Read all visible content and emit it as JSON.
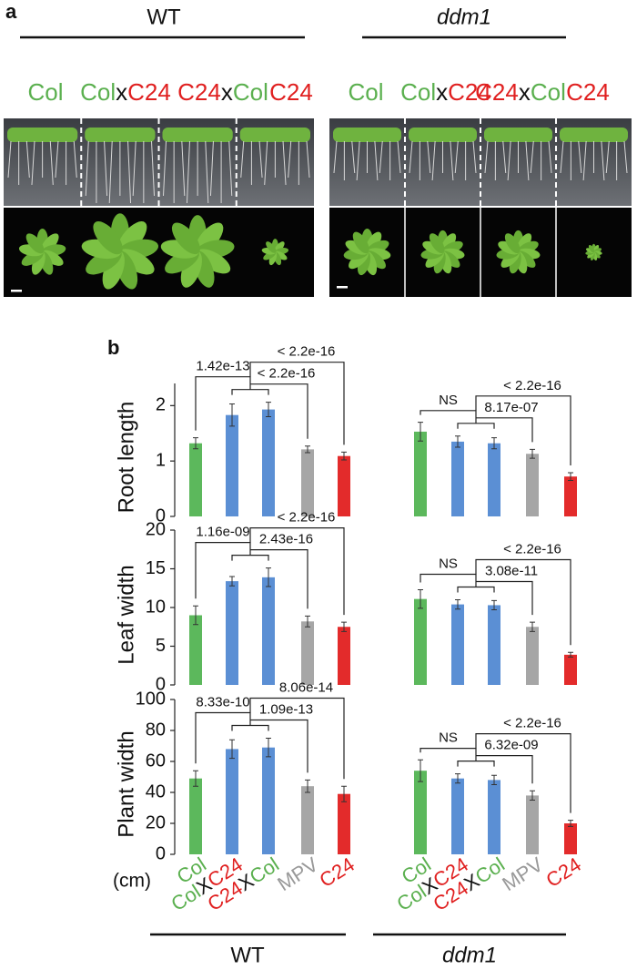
{
  "panel_a": {
    "label": "a",
    "groups": [
      {
        "name": "WT",
        "samples": [
          {
            "parts": [
              {
                "text": "Col",
                "color": "#5bb04f"
              }
            ]
          },
          {
            "parts": [
              {
                "text": "Col",
                "color": "#5bb04f"
              },
              {
                "text": "x",
                "color": "#111111"
              },
              {
                "text": "C24",
                "color": "#e02020"
              }
            ]
          },
          {
            "parts": [
              {
                "text": "C24",
                "color": "#e02020"
              },
              {
                "text": "x",
                "color": "#111111"
              },
              {
                "text": "Col",
                "color": "#5bb04f"
              }
            ]
          },
          {
            "parts": [
              {
                "text": "C24",
                "color": "#e02020"
              }
            ]
          }
        ]
      },
      {
        "name": "ddm1",
        "samples": [
          {
            "parts": [
              {
                "text": "Col",
                "color": "#5bb04f"
              }
            ]
          },
          {
            "parts": [
              {
                "text": "Col",
                "color": "#5bb04f"
              },
              {
                "text": "x",
                "color": "#111111"
              },
              {
                "text": "C24",
                "color": "#e02020"
              }
            ]
          },
          {
            "parts": [
              {
                "text": "C24",
                "color": "#e02020"
              },
              {
                "text": "x",
                "color": "#111111"
              },
              {
                "text": "Col",
                "color": "#5bb04f"
              }
            ]
          },
          {
            "parts": [
              {
                "text": "C24",
                "color": "#e02020"
              }
            ]
          }
        ]
      }
    ]
  },
  "panel_b": {
    "label": "b",
    "unit": "(cm)",
    "groups": [
      "WT",
      "ddm1"
    ]
  },
  "chart_data": [
    {
      "type": "bar",
      "ylabel": "Root length",
      "values": [
        1.32,
        1.83,
        1.93,
        1.21,
        1.09
      ],
      "errors": [
        0.1,
        0.2,
        0.13,
        0.06,
        0.07
      ],
      "colors": [
        "#5cb85c",
        "#5b8fd4",
        "#5b8fd4",
        "#a6a6a6",
        "#e32b2b"
      ],
      "ylim": [
        0,
        2.4
      ],
      "yticks": [
        0,
        1,
        2
      ],
      "annotations": [
        "1.42e-13",
        "< 2.2e-16",
        "< 2.2e-16"
      ]
    },
    {
      "type": "bar",
      "values": [
        1.53,
        1.35,
        1.32,
        1.13,
        0.72
      ],
      "errors": [
        0.17,
        0.1,
        0.1,
        0.08,
        0.07
      ],
      "colors": [
        "#5cb85c",
        "#5b8fd4",
        "#5b8fd4",
        "#a6a6a6",
        "#e32b2b"
      ],
      "ylim": [
        0,
        2.4
      ],
      "annotations": [
        "NS",
        "8.17e-07",
        "< 2.2e-16"
      ]
    },
    {
      "type": "bar",
      "ylabel": "Leaf width",
      "values": [
        9,
        13.4,
        13.9,
        8.2,
        7.5
      ],
      "errors": [
        1.2,
        0.6,
        1.2,
        0.7,
        0.6
      ],
      "colors": [
        "#5cb85c",
        "#5b8fd4",
        "#5b8fd4",
        "#a6a6a6",
        "#e32b2b"
      ],
      "ylim": [
        0,
        20
      ],
      "yticks": [
        0,
        5,
        10,
        15,
        20
      ],
      "annotations": [
        "1.16e-09",
        "2.43e-16",
        "< 2.2e-16"
      ]
    },
    {
      "type": "bar",
      "values": [
        11.1,
        10.4,
        10.3,
        7.5,
        3.9
      ],
      "errors": [
        1.2,
        0.6,
        0.6,
        0.6,
        0.3
      ],
      "colors": [
        "#5cb85c",
        "#5b8fd4",
        "#5b8fd4",
        "#a6a6a6",
        "#e32b2b"
      ],
      "ylim": [
        0,
        20
      ],
      "annotations": [
        "NS",
        "3.08e-11",
        "< 2.2e-16"
      ]
    },
    {
      "type": "bar",
      "ylabel": "Plant width",
      "values": [
        49,
        68,
        69,
        44,
        39
      ],
      "errors": [
        5,
        6,
        6,
        4,
        5
      ],
      "colors": [
        "#5cb85c",
        "#5b8fd4",
        "#5b8fd4",
        "#a6a6a6",
        "#e32b2b"
      ],
      "ylim": [
        0,
        100
      ],
      "yticks": [
        0,
        20,
        40,
        60,
        80,
        100
      ],
      "annotations": [
        "8.33e-10",
        "1.09e-13",
        "8.06e-14"
      ],
      "categories": [
        {
          "parts": [
            {
              "text": "Col",
              "color": "#5bb04f"
            }
          ]
        },
        {
          "parts": [
            {
              "text": "Col",
              "color": "#5bb04f"
            },
            {
              "text": "X",
              "color": "#111111"
            },
            {
              "text": "C24",
              "color": "#e02020"
            }
          ]
        },
        {
          "parts": [
            {
              "text": "C24",
              "color": "#e02020"
            },
            {
              "text": "X",
              "color": "#111111"
            },
            {
              "text": "Col",
              "color": "#5bb04f"
            }
          ]
        },
        {
          "parts": [
            {
              "text": "MPV",
              "color": "#999999"
            }
          ]
        },
        {
          "parts": [
            {
              "text": "C24",
              "color": "#e02020"
            }
          ]
        }
      ]
    },
    {
      "type": "bar",
      "values": [
        54,
        49,
        48,
        38,
        20
      ],
      "errors": [
        7,
        3,
        3,
        3,
        2
      ],
      "colors": [
        "#5cb85c",
        "#5b8fd4",
        "#5b8fd4",
        "#a6a6a6",
        "#e32b2b"
      ],
      "ylim": [
        0,
        100
      ],
      "annotations": [
        "NS",
        "6.32e-09",
        "< 2.2e-16"
      ],
      "categories": [
        {
          "parts": [
            {
              "text": "Col",
              "color": "#5bb04f"
            }
          ]
        },
        {
          "parts": [
            {
              "text": "Col",
              "color": "#5bb04f"
            },
            {
              "text": "X",
              "color": "#111111"
            },
            {
              "text": "C24",
              "color": "#e02020"
            }
          ]
        },
        {
          "parts": [
            {
              "text": "C24",
              "color": "#e02020"
            },
            {
              "text": "X",
              "color": "#111111"
            },
            {
              "text": "Col",
              "color": "#5bb04f"
            }
          ]
        },
        {
          "parts": [
            {
              "text": "MPV",
              "color": "#999999"
            }
          ]
        },
        {
          "parts": [
            {
              "text": "C24",
              "color": "#e02020"
            }
          ]
        }
      ]
    }
  ]
}
